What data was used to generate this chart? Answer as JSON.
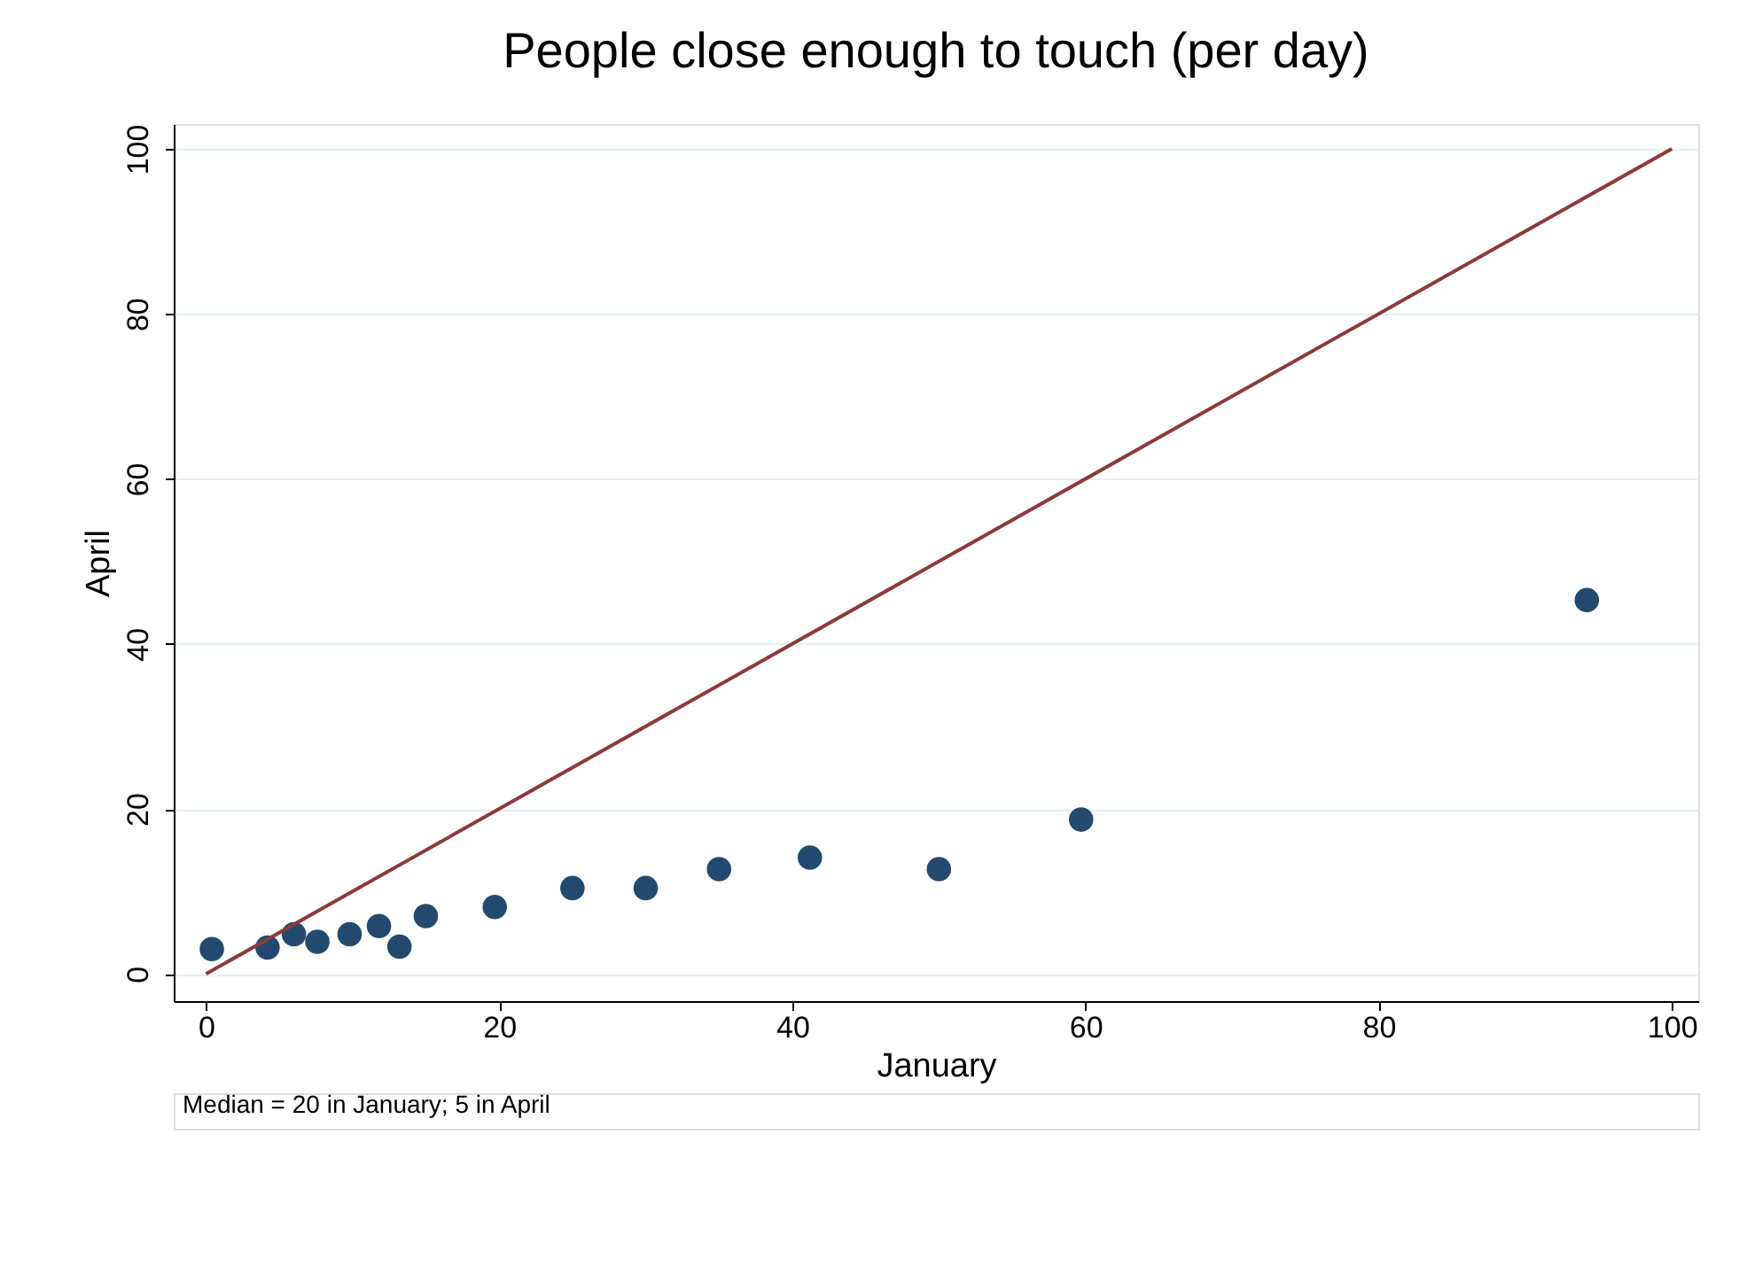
{
  "chart_data": {
    "type": "scatter",
    "title": "People close enough to touch (per day)",
    "xlabel": "January",
    "ylabel": "April",
    "annotations": [
      "Median = 20 in January; 5 in April"
    ],
    "xlim": [
      -2.2,
      101.8
    ],
    "ylim": [
      -3.3,
      103
    ],
    "xticks": [
      0,
      20,
      40,
      60,
      80,
      100
    ],
    "yticks": [
      0,
      20,
      40,
      60,
      80,
      100
    ],
    "grid": "y",
    "marker": "circle",
    "series": [
      {
        "color": "#234a6e",
        "x": [
          0.4,
          4.2,
          6.0,
          7.6,
          9.8,
          11.8,
          13.2,
          15.0,
          19.7,
          25.0,
          30.0,
          35.0,
          41.2,
          50.0,
          59.7,
          94.2
        ],
        "values": [
          3.0,
          3.2,
          4.8,
          3.9,
          4.8,
          5.8,
          3.3,
          7.0,
          8.1,
          10.4,
          10.4,
          12.7,
          14.1,
          12.7,
          18.7,
          45.3
        ]
      },
      {
        "type": "line",
        "color": "#8b3a3a",
        "x": [
          0,
          100
        ],
        "values": [
          0,
          100
        ],
        "marker": "none"
      }
    ]
  }
}
